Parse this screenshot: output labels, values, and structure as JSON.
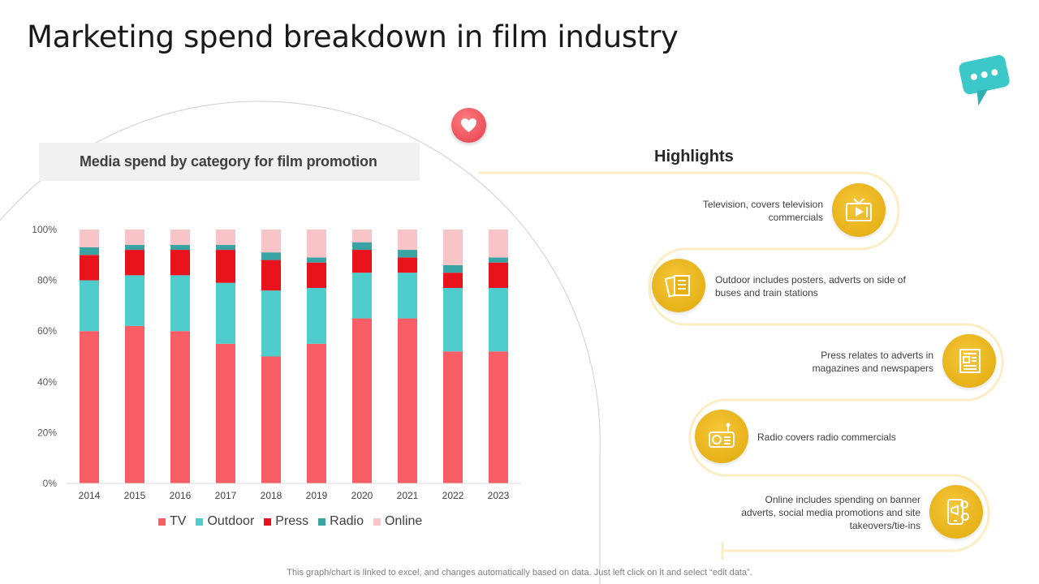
{
  "title": "Marketing spend breakdown in film industry",
  "chart_title": "Media spend by category for film promotion",
  "highlights_title": "Highlights",
  "highlights": [
    {
      "text": "Television, covers television commercials",
      "icon": "tv-icon"
    },
    {
      "text": "Outdoor includes posters, adverts on side of buses and train stations",
      "icon": "posters-icon"
    },
    {
      "text": "Press relates to adverts in magazines and newspapers",
      "icon": "newspaper-icon"
    },
    {
      "text": "Radio covers radio commercials",
      "icon": "radio-icon"
    },
    {
      "text": "Online includes spending on banner adverts, social media promotions and site takeovers/tie-ins",
      "icon": "mobile-online-icon"
    }
  ],
  "footnote": "This graph/chart is linked to excel, and changes automatically based on data. Just left click on it and select “edit data”.",
  "colors": {
    "TV": "#f95e66",
    "Outdoor": "#4fcdcd",
    "Press": "#e8131d",
    "Radio": "#3aa3a3",
    "Online": "#f9c4c8",
    "accent_yellow": "#f0b816",
    "teal_bubble": "#3cc8c8"
  },
  "chart_data": {
    "type": "bar",
    "stacked": true,
    "categories": [
      "2014",
      "2015",
      "2016",
      "2017",
      "2018",
      "2019",
      "2020",
      "2021",
      "2022",
      "2023"
    ],
    "series": [
      {
        "name": "TV",
        "values": [
          60,
          62,
          60,
          55,
          50,
          55,
          65,
          65,
          52,
          52
        ]
      },
      {
        "name": "Outdoor",
        "values": [
          20,
          20,
          22,
          24,
          26,
          22,
          18,
          18,
          25,
          25
        ]
      },
      {
        "name": "Press",
        "values": [
          10,
          10,
          10,
          13,
          12,
          10,
          9,
          6,
          6,
          10
        ]
      },
      {
        "name": "Radio",
        "values": [
          3,
          2,
          2,
          2,
          3,
          2,
          3,
          3,
          3,
          2
        ]
      },
      {
        "name": "Online",
        "values": [
          7,
          6,
          6,
          6,
          9,
          11,
          5,
          8,
          14,
          11
        ]
      }
    ],
    "yticks": [
      "0%",
      "20%",
      "40%",
      "60%",
      "80%",
      "100%"
    ],
    "ylim": [
      0,
      100
    ],
    "title": "Media spend by category for film promotion",
    "legend": "bottom"
  }
}
